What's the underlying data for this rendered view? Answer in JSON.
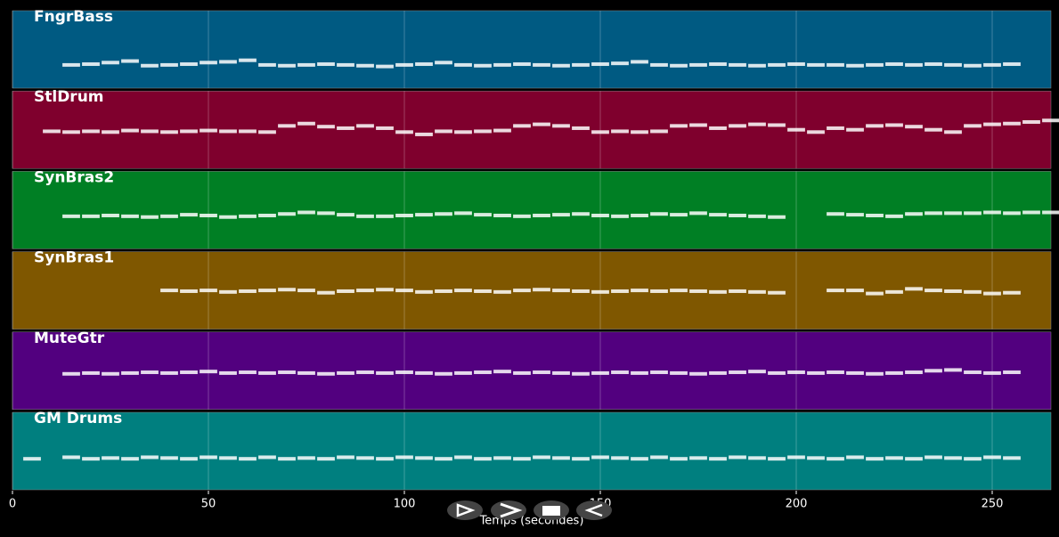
{
  "chart_data": {
    "type": "timeline",
    "xlabel": "Temps (secondes)",
    "xlim": [
      0,
      265
    ],
    "xticks": [
      0,
      50,
      100,
      150,
      200,
      250
    ],
    "ylim": [
      0,
      100
    ],
    "grid": true,
    "note_color": "#ffffff",
    "x": [
      0,
      5,
      10,
      15,
      20,
      25,
      30,
      35,
      40,
      45,
      50,
      55,
      60,
      65,
      70,
      75,
      80,
      85,
      90,
      95,
      100,
      105,
      110,
      115,
      120,
      125,
      130,
      135,
      140,
      145,
      150,
      155,
      160,
      165,
      170,
      175,
      180,
      185,
      190,
      195,
      200,
      205,
      210,
      215,
      220,
      225,
      230,
      235,
      240,
      245,
      250,
      255,
      260,
      265
    ],
    "series": [
      {
        "name": "FngrBass",
        "color": "#005a82",
        "values": [
          null,
          null,
          null,
          30,
          31,
          33,
          35,
          29,
          30,
          31,
          33,
          34,
          36,
          30,
          29,
          30,
          31,
          30,
          29,
          28,
          30,
          31,
          33,
          30,
          29,
          30,
          31,
          30,
          29,
          30,
          31,
          32,
          34,
          30,
          29,
          30,
          31,
          30,
          29,
          30,
          31,
          30,
          30,
          29,
          30,
          31,
          30,
          31,
          30,
          29,
          30,
          31,
          null,
          null
        ]
      },
      {
        "name": "StlDrum",
        "color": "#7f002d",
        "values": [
          null,
          null,
          48,
          47,
          48,
          47,
          49,
          48,
          47,
          48,
          49,
          48,
          48,
          47,
          55,
          58,
          54,
          52,
          55,
          52,
          47,
          44,
          48,
          47,
          48,
          49,
          55,
          57,
          55,
          52,
          47,
          48,
          47,
          48,
          55,
          56,
          52,
          55,
          57,
          56,
          50,
          47,
          52,
          50,
          55,
          56,
          54,
          50,
          47,
          55,
          57,
          58,
          60,
          62
        ]
      },
      {
        "name": "SynBras2",
        "color": "#007f24",
        "values": [
          null,
          null,
          null,
          42,
          42,
          43,
          42,
          41,
          42,
          44,
          43,
          41,
          42,
          43,
          45,
          47,
          46,
          44,
          42,
          42,
          43,
          44,
          45,
          46,
          44,
          43,
          42,
          43,
          44,
          45,
          43,
          42,
          43,
          45,
          44,
          46,
          44,
          43,
          42,
          41,
          null,
          null,
          45,
          44,
          43,
          42,
          45,
          46,
          46,
          46,
          47,
          46,
          47,
          47
        ]
      },
      {
        "name": "SynBras1",
        "color": "#7f5700",
        "values": [
          null,
          null,
          null,
          null,
          null,
          null,
          null,
          null,
          50,
          49,
          50,
          48,
          49,
          50,
          51,
          50,
          47,
          49,
          50,
          51,
          50,
          48,
          49,
          50,
          49,
          48,
          50,
          51,
          50,
          49,
          48,
          49,
          50,
          49,
          50,
          49,
          48,
          49,
          48,
          47,
          null,
          null,
          50,
          50,
          46,
          48,
          52,
          50,
          49,
          48,
          46,
          47,
          null,
          null
        ]
      },
      {
        "name": "MuteGtr",
        "color": "#52007f",
        "values": [
          null,
          null,
          null,
          46,
          47,
          46,
          47,
          48,
          47,
          48,
          49,
          47,
          48,
          47,
          48,
          47,
          46,
          47,
          48,
          47,
          48,
          47,
          46,
          47,
          48,
          49,
          47,
          48,
          47,
          46,
          47,
          48,
          47,
          48,
          47,
          46,
          47,
          48,
          49,
          47,
          48,
          47,
          48,
          47,
          46,
          47,
          48,
          50,
          51,
          48,
          47,
          48,
          null,
          null
        ]
      },
      {
        "name": "GM Drums",
        "color": "#007f7f",
        "values": [
          null,
          40,
          null,
          42,
          40,
          41,
          40,
          42,
          41,
          40,
          42,
          41,
          40,
          42,
          40,
          41,
          40,
          42,
          41,
          40,
          42,
          41,
          40,
          42,
          40,
          41,
          40,
          42,
          41,
          40,
          42,
          41,
          40,
          42,
          40,
          41,
          40,
          42,
          41,
          40,
          42,
          41,
          40,
          42,
          40,
          41,
          40,
          42,
          41,
          40,
          42,
          41,
          null,
          null
        ]
      }
    ]
  }
}
